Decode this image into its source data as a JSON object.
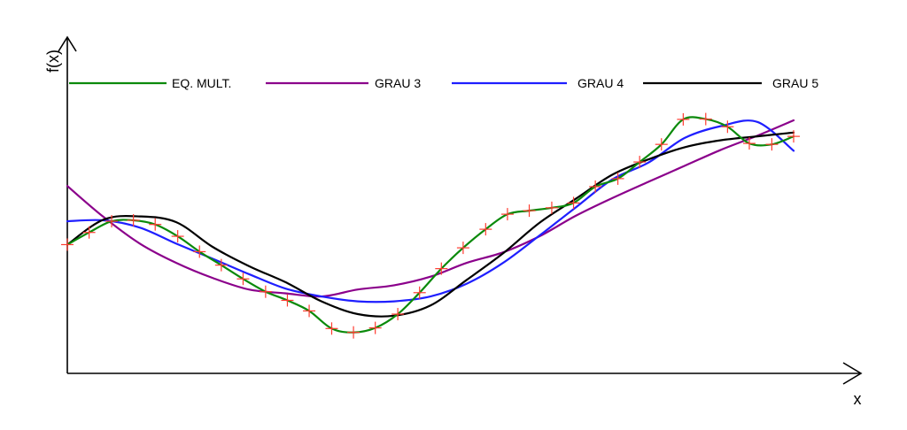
{
  "chart_data": {
    "type": "line",
    "xlabel": "x",
    "ylabel": "f(x)",
    "xlim": [
      0,
      1
    ],
    "ylim": [
      0,
      1
    ],
    "grid": false,
    "legend_position": "top",
    "colors": {
      "eq_mult": "#0b8a0b",
      "grau3": "#8b008b",
      "grau4": "#1f1fff",
      "grau5": "#000000",
      "markers": "#ff3b30"
    },
    "legend": [
      "EQ. MULT.",
      "GRAU 3",
      "GRAU 4",
      "GRAU 5"
    ],
    "points": {
      "name": "",
      "x": [
        0.0,
        0.03,
        0.061,
        0.091,
        0.121,
        0.152,
        0.182,
        0.212,
        0.242,
        0.273,
        0.303,
        0.333,
        0.364,
        0.394,
        0.424,
        0.455,
        0.485,
        0.515,
        0.545,
        0.576,
        0.606,
        0.636,
        0.667,
        0.697,
        0.727,
        0.758,
        0.788,
        0.818,
        0.848,
        0.879,
        0.909,
        0.939,
        0.97,
        1.0
      ],
      "y": [
        0.402,
        0.44,
        0.475,
        0.478,
        0.465,
        0.428,
        0.38,
        0.338,
        0.295,
        0.255,
        0.228,
        0.195,
        0.14,
        0.128,
        0.142,
        0.185,
        0.252,
        0.327,
        0.392,
        0.45,
        0.497,
        0.508,
        0.517,
        0.532,
        0.583,
        0.608,
        0.66,
        0.715,
        0.793,
        0.794,
        0.77,
        0.718,
        0.715,
        0.74
      ]
    },
    "series": [
      {
        "name": "EQ. MULT.",
        "x": [
          0.0,
          0.03,
          0.061,
          0.091,
          0.121,
          0.152,
          0.182,
          0.212,
          0.242,
          0.273,
          0.303,
          0.333,
          0.364,
          0.394,
          0.424,
          0.455,
          0.485,
          0.515,
          0.545,
          0.576,
          0.606,
          0.636,
          0.667,
          0.697,
          0.727,
          0.758,
          0.788,
          0.818,
          0.848,
          0.879,
          0.909,
          0.939,
          0.97,
          1.0
        ],
        "y": [
          0.402,
          0.44,
          0.475,
          0.478,
          0.465,
          0.428,
          0.38,
          0.338,
          0.295,
          0.255,
          0.228,
          0.195,
          0.14,
          0.128,
          0.142,
          0.185,
          0.252,
          0.327,
          0.392,
          0.45,
          0.497,
          0.508,
          0.517,
          0.532,
          0.583,
          0.608,
          0.66,
          0.715,
          0.793,
          0.794,
          0.77,
          0.718,
          0.715,
          0.74
        ]
      },
      {
        "name": "GRAU 3",
        "x": [
          0.0,
          0.05,
          0.1,
          0.15,
          0.2,
          0.25,
          0.3,
          0.35,
          0.4,
          0.45,
          0.5,
          0.55,
          0.6,
          0.65,
          0.7,
          0.75,
          0.8,
          0.85,
          0.9,
          0.95,
          1.0
        ],
        "y": [
          0.585,
          0.488,
          0.405,
          0.345,
          0.298,
          0.262,
          0.25,
          0.24,
          0.262,
          0.275,
          0.302,
          0.345,
          0.378,
          0.428,
          0.492,
          0.547,
          0.598,
          0.648,
          0.698,
          0.742,
          0.79
        ]
      },
      {
        "name": "GRAU 4",
        "x": [
          0.0,
          0.05,
          0.1,
          0.15,
          0.2,
          0.25,
          0.3,
          0.35,
          0.4,
          0.45,
          0.5,
          0.55,
          0.6,
          0.65,
          0.7,
          0.75,
          0.8,
          0.85,
          0.9,
          0.95,
          1.0
        ],
        "y": [
          0.475,
          0.478,
          0.455,
          0.405,
          0.358,
          0.31,
          0.265,
          0.24,
          0.225,
          0.225,
          0.24,
          0.28,
          0.345,
          0.43,
          0.518,
          0.605,
          0.658,
          0.735,
          0.772,
          0.785,
          0.695
        ]
      },
      {
        "name": "GRAU 5",
        "x": [
          0.0,
          0.05,
          0.1,
          0.15,
          0.2,
          0.25,
          0.3,
          0.35,
          0.4,
          0.45,
          0.5,
          0.55,
          0.6,
          0.65,
          0.7,
          0.75,
          0.8,
          0.85,
          0.9,
          0.95,
          1.0
        ],
        "y": [
          0.402,
          0.48,
          0.49,
          0.472,
          0.395,
          0.335,
          0.285,
          0.225,
          0.185,
          0.18,
          0.212,
          0.292,
          0.375,
          0.47,
          0.545,
          0.62,
          0.668,
          0.706,
          0.728,
          0.74,
          0.752
        ]
      }
    ]
  }
}
